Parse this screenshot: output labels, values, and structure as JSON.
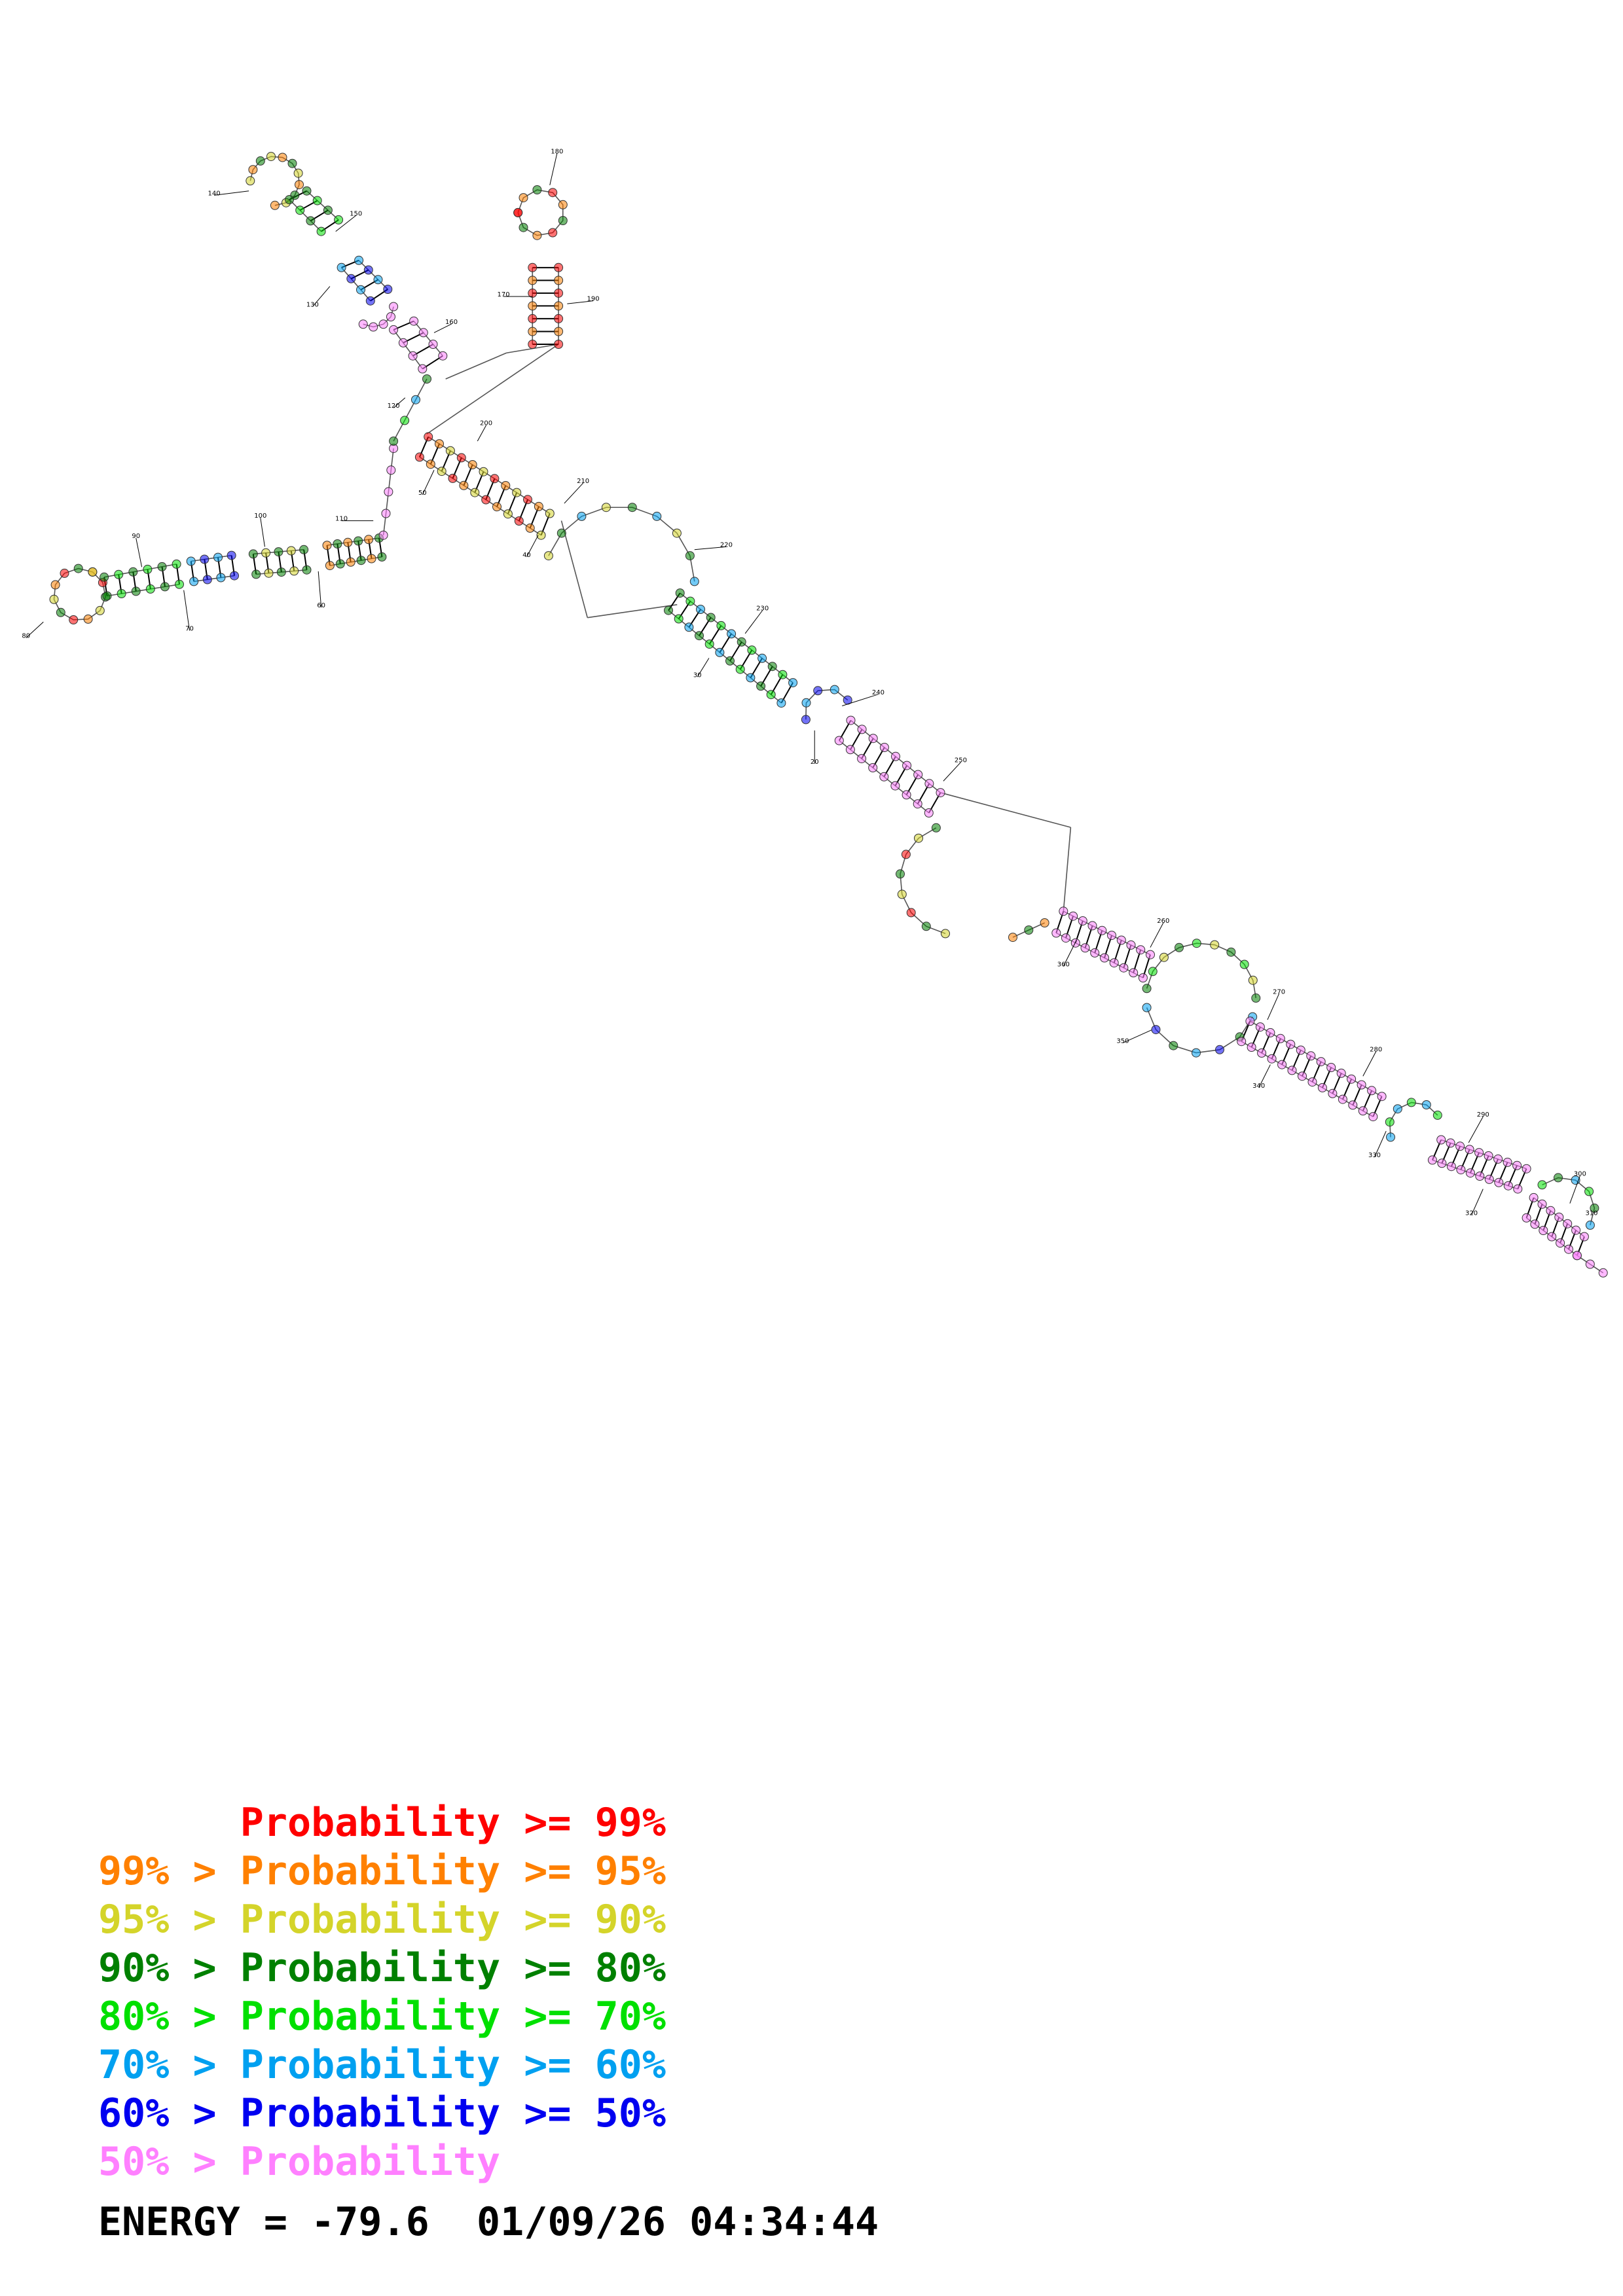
{
  "structure": {
    "colors": {
      "p99": "#ff0000",
      "p95": "#ff8000",
      "p90": "#d4d42a",
      "p80": "#008000",
      "p70": "#00e000",
      "p60": "#00a0f0",
      "p50": "#0000f0",
      "low": "#ff80ff"
    },
    "position_labels": [
      "20",
      "30",
      "40",
      "50",
      "60",
      "70",
      "80",
      "90",
      "100",
      "110",
      "120",
      "130",
      "140",
      "150",
      "160",
      "170",
      "180",
      "190",
      "200",
      "210",
      "220",
      "230",
      "240",
      "250",
      "260",
      "270",
      "280",
      "290",
      "300",
      "310",
      "320",
      "330",
      "340",
      "350",
      "360"
    ]
  },
  "legend": [
    {
      "text": "      Probability >= 99%",
      "color": "#ff0000"
    },
    {
      "text": "99% > Probability >= 95%",
      "color": "#ff8000"
    },
    {
      "text": "95% > Probability >= 90%",
      "color": "#d4d42a"
    },
    {
      "text": "90% > Probability >= 80%",
      "color": "#008000"
    },
    {
      "text": "80% > Probability >= 70%",
      "color": "#00e000"
    },
    {
      "text": "70% > Probability >= 60%",
      "color": "#00a0f0"
    },
    {
      "text": "60% > Probability >= 50%",
      "color": "#0000f0"
    },
    {
      "text": "50% > Probability",
      "color": "#ff80ff"
    }
  ],
  "energy_text": "ENERGY = -79.6  01/09/26 04:34:44"
}
